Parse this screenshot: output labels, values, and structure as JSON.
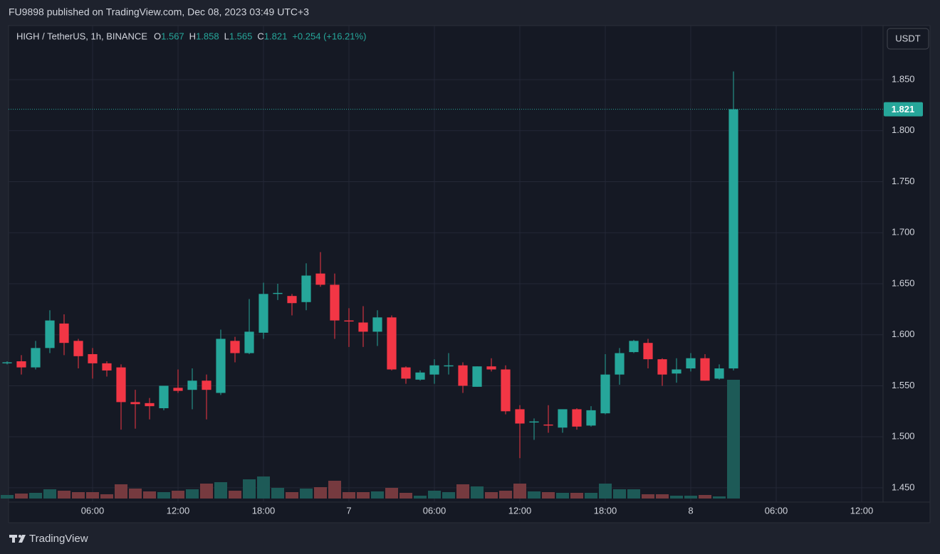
{
  "chart_data": {
    "type": "candlestick",
    "published": "FU9898 published on TradingView.com, Dec 08, 2023 03:49 UTC+3",
    "title": "HIGH / TetherUS, 1h, BINANCE",
    "legend_keys": [
      "O",
      "H",
      "L",
      "C"
    ],
    "change": "+0.254 (+16.21%)",
    "currency": "USDT",
    "brand": "TradingView",
    "up_color": "#26a69a",
    "down_color": "#f23645",
    "up_volume_color": "#1d5a57",
    "down_volume_color": "#763a3f",
    "open": [
      1.572,
      1.574,
      1.568,
      1.587,
      1.611,
      1.594,
      1.581,
      1.572,
      1.568,
      1.534,
      1.533,
      1.528,
      1.548,
      1.546,
      1.555,
      1.543,
      1.594,
      1.582,
      1.602,
      1.64,
      1.638,
      1.632,
      1.66,
      1.649,
      1.614,
      1.612,
      1.603,
      1.617,
      1.568,
      1.556,
      1.561,
      1.569,
      1.57,
      1.549,
      1.569,
      1.566,
      1.527,
      1.514,
      1.512,
      1.509,
      1.527,
      1.511,
      1.523,
      1.561,
      1.583,
      1.592,
      1.576,
      1.562,
      1.567,
      1.577,
      1.557,
      1.567
    ],
    "high": [
      1.574,
      1.58,
      1.594,
      1.624,
      1.62,
      1.596,
      1.587,
      1.574,
      1.571,
      1.546,
      1.538,
      1.55,
      1.566,
      1.567,
      1.561,
      1.605,
      1.598,
      1.635,
      1.651,
      1.65,
      1.64,
      1.67,
      1.681,
      1.66,
      1.626,
      1.628,
      1.624,
      1.619,
      1.569,
      1.565,
      1.576,
      1.582,
      1.573,
      1.569,
      1.577,
      1.57,
      1.531,
      1.518,
      1.531,
      1.527,
      1.528,
      1.53,
      1.581,
      1.587,
      1.595,
      1.596,
      1.577,
      1.577,
      1.582,
      1.581,
      1.571,
      1.858
    ],
    "low": [
      1.571,
      1.561,
      1.566,
      1.582,
      1.58,
      1.567,
      1.557,
      1.559,
      1.507,
      1.508,
      1.517,
      1.526,
      1.543,
      1.527,
      1.517,
      1.541,
      1.573,
      1.581,
      1.596,
      1.634,
      1.619,
      1.624,
      1.647,
      1.596,
      1.588,
      1.588,
      1.589,
      1.565,
      1.552,
      1.555,
      1.552,
      1.561,
      1.543,
      1.549,
      1.564,
      1.522,
      1.479,
      1.497,
      1.504,
      1.504,
      1.507,
      1.51,
      1.522,
      1.551,
      1.582,
      1.567,
      1.55,
      1.553,
      1.564,
      1.555,
      1.556,
      1.565
    ],
    "close": [
      1.573,
      1.568,
      1.587,
      1.614,
      1.592,
      1.579,
      1.572,
      1.565,
      1.534,
      1.532,
      1.53,
      1.55,
      1.545,
      1.555,
      1.546,
      1.596,
      1.582,
      1.603,
      1.64,
      1.641,
      1.631,
      1.658,
      1.649,
      1.614,
      1.613,
      1.603,
      1.617,
      1.566,
      1.557,
      1.563,
      1.57,
      1.57,
      1.55,
      1.569,
      1.566,
      1.525,
      1.513,
      1.515,
      1.511,
      1.527,
      1.51,
      1.526,
      1.561,
      1.582,
      1.594,
      1.576,
      1.561,
      1.566,
      1.577,
      1.555,
      1.567,
      1.821
    ],
    "volume": [
      5,
      7,
      8,
      13,
      11,
      9,
      9,
      6,
      20,
      14,
      10,
      9,
      11,
      13,
      21,
      23,
      11,
      27,
      31,
      15,
      9,
      14,
      16,
      25,
      9,
      9,
      10,
      15,
      8,
      4,
      11,
      9,
      20,
      17,
      9,
      11,
      21,
      10,
      9,
      8,
      8,
      8,
      21,
      13,
      13,
      6,
      6,
      4,
      4,
      5,
      3,
      167
    ],
    "xlim": [
      0.1,
      61.5
    ],
    "xticks": [
      {
        "value": 6,
        "label": "06:00"
      },
      {
        "value": 12,
        "label": "12:00"
      },
      {
        "value": 18,
        "label": "18:00"
      },
      {
        "value": 24,
        "label": "7"
      },
      {
        "value": 30,
        "label": "06:00"
      },
      {
        "value": 36,
        "label": "12:00"
      },
      {
        "value": 42,
        "label": "18:00"
      },
      {
        "value": 48,
        "label": "8"
      },
      {
        "value": 54,
        "label": "06:00"
      },
      {
        "value": 60,
        "label": "12:00"
      }
    ],
    "ylim": [
      1.436,
      1.903
    ],
    "yticks": [
      {
        "value": 1.45,
        "label": "1.450"
      },
      {
        "value": 1.5,
        "label": "1.500"
      },
      {
        "value": 1.55,
        "label": "1.550"
      },
      {
        "value": 1.6,
        "label": "1.600"
      },
      {
        "value": 1.65,
        "label": "1.650"
      },
      {
        "value": 1.7,
        "label": "1.700"
      },
      {
        "value": 1.75,
        "label": "1.750"
      },
      {
        "value": 1.8,
        "label": "1.800"
      },
      {
        "value": 1.85,
        "label": "1.850"
      }
    ],
    "grid": true
  }
}
